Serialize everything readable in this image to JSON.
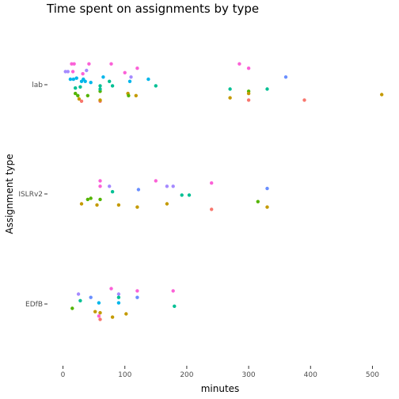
{
  "chart_data": {
    "type": "scatter",
    "title": "Time spent on assignments by type",
    "xlabel": "minutes",
    "ylabel": "Assignment type",
    "xlim": [
      -25,
      525
    ],
    "x_ticks": [
      0,
      100,
      200,
      300,
      400,
      500
    ],
    "categories": [
      "lab",
      "ISLRv2",
      "EDfB"
    ],
    "grid": false,
    "legend": "none",
    "point_colors": [
      "#F8766D",
      "#C49A00",
      "#53B400",
      "#00C094",
      "#00B6EB",
      "#A58AFF",
      "#FB61D7"
    ],
    "points": [
      {
        "category": "lab",
        "x": 4,
        "jitter": 0.12,
        "color": "#A58AFF"
      },
      {
        "category": "lab",
        "x": 8,
        "jitter": 0.12,
        "color": "#A58AFF"
      },
      {
        "category": "lab",
        "x": 12,
        "jitter": 0.05,
        "color": "#00B6EB"
      },
      {
        "category": "lab",
        "x": 14,
        "jitter": 0.19,
        "color": "#FB61D7"
      },
      {
        "category": "lab",
        "x": 16,
        "jitter": 0.12,
        "color": "#FB61D7"
      },
      {
        "category": "lab",
        "x": 17,
        "jitter": 0.05,
        "color": "#00B6EB"
      },
      {
        "category": "lab",
        "x": 18,
        "jitter": 0.19,
        "color": "#FB61D7"
      },
      {
        "category": "lab",
        "x": 20,
        "jitter": -0.03,
        "color": "#00C094"
      },
      {
        "category": "lab",
        "x": 22,
        "jitter": 0.06,
        "color": "#00B6EB"
      },
      {
        "category": "lab",
        "x": 20,
        "jitter": -0.08,
        "color": "#53B400"
      },
      {
        "category": "lab",
        "x": 24,
        "jitter": -0.1,
        "color": "#53B400"
      },
      {
        "category": "lab",
        "x": 26,
        "jitter": -0.13,
        "color": "#C49A00"
      },
      {
        "category": "lab",
        "x": 28,
        "jitter": -0.02,
        "color": "#00C094"
      },
      {
        "category": "lab",
        "x": 30,
        "jitter": -0.15,
        "color": "#F8766D"
      },
      {
        "category": "lab",
        "x": 30,
        "jitter": 0.03,
        "color": "#00B6EB"
      },
      {
        "category": "lab",
        "x": 32,
        "jitter": 0.1,
        "color": "#FB61D7"
      },
      {
        "category": "lab",
        "x": 33,
        "jitter": 0.05,
        "color": "#00B6EB"
      },
      {
        "category": "lab",
        "x": 36,
        "jitter": 0.03,
        "color": "#00B6EB"
      },
      {
        "category": "lab",
        "x": 38,
        "jitter": 0.13,
        "color": "#A58AFF"
      },
      {
        "category": "lab",
        "x": 40,
        "jitter": -0.1,
        "color": "#53B400"
      },
      {
        "category": "lab",
        "x": 42,
        "jitter": 0.19,
        "color": "#FB61D7"
      },
      {
        "category": "lab",
        "x": 45,
        "jitter": 0.02,
        "color": "#00B6EB"
      },
      {
        "category": "lab",
        "x": 60,
        "jitter": -0.15,
        "color": "#F8766D"
      },
      {
        "category": "lab",
        "x": 60,
        "jitter": -0.14,
        "color": "#C49A00"
      },
      {
        "category": "lab",
        "x": 60,
        "jitter": -0.06,
        "color": "#53B400"
      },
      {
        "category": "lab",
        "x": 60,
        "jitter": -0.04,
        "color": "#00C094"
      },
      {
        "category": "lab",
        "x": 60,
        "jitter": -0.01,
        "color": "#00C094"
      },
      {
        "category": "lab",
        "x": 65,
        "jitter": 0.07,
        "color": "#00B6EB"
      },
      {
        "category": "lab",
        "x": 75,
        "jitter": 0.03,
        "color": "#00C094"
      },
      {
        "category": "lab",
        "x": 78,
        "jitter": 0.19,
        "color": "#FB61D7"
      },
      {
        "category": "lab",
        "x": 80,
        "jitter": -0.01,
        "color": "#00C094"
      },
      {
        "category": "lab",
        "x": 100,
        "jitter": 0.11,
        "color": "#FB61D7"
      },
      {
        "category": "lab",
        "x": 105,
        "jitter": -0.08,
        "color": "#C49A00"
      },
      {
        "category": "lab",
        "x": 106,
        "jitter": -0.1,
        "color": "#53B400"
      },
      {
        "category": "lab",
        "x": 108,
        "jitter": 0.03,
        "color": "#00B6EB"
      },
      {
        "category": "lab",
        "x": 110,
        "jitter": 0.07,
        "color": "#A58AFF"
      },
      {
        "category": "lab",
        "x": 118,
        "jitter": -0.1,
        "color": "#C49A00"
      },
      {
        "category": "lab",
        "x": 120,
        "jitter": 0.15,
        "color": "#FB61D7"
      },
      {
        "category": "lab",
        "x": 138,
        "jitter": 0.05,
        "color": "#00B6EB"
      },
      {
        "category": "lab",
        "x": 150,
        "jitter": -0.01,
        "color": "#00C094"
      },
      {
        "category": "lab",
        "x": 270,
        "jitter": -0.04,
        "color": "#00C094"
      },
      {
        "category": "lab",
        "x": 270,
        "jitter": -0.12,
        "color": "#C49A00"
      },
      {
        "category": "lab",
        "x": 285,
        "jitter": 0.19,
        "color": "#FB61D7"
      },
      {
        "category": "lab",
        "x": 300,
        "jitter": 0.15,
        "color": "#FB61D7"
      },
      {
        "category": "lab",
        "x": 300,
        "jitter": -0.06,
        "color": "#53B400"
      },
      {
        "category": "lab",
        "x": 300,
        "jitter": -0.08,
        "color": "#C49A00"
      },
      {
        "category": "lab",
        "x": 300,
        "jitter": -0.14,
        "color": "#F8766D"
      },
      {
        "category": "lab",
        "x": 330,
        "jitter": -0.04,
        "color": "#00C094"
      },
      {
        "category": "lab",
        "x": 360,
        "jitter": 0.07,
        "color": "#6A8FFF"
      },
      {
        "category": "lab",
        "x": 390,
        "jitter": -0.14,
        "color": "#F8766D"
      },
      {
        "category": "lab",
        "x": 515,
        "jitter": -0.09,
        "color": "#C49A00"
      },
      {
        "category": "ISLRv2",
        "x": 30,
        "jitter": -0.09,
        "color": "#C49A00"
      },
      {
        "category": "ISLRv2",
        "x": 40,
        "jitter": -0.05,
        "color": "#53B400"
      },
      {
        "category": "ISLRv2",
        "x": 45,
        "jitter": -0.04,
        "color": "#53B400"
      },
      {
        "category": "ISLRv2",
        "x": 55,
        "jitter": -0.1,
        "color": "#C49A00"
      },
      {
        "category": "ISLRv2",
        "x": 60,
        "jitter": 0.12,
        "color": "#FB61D7"
      },
      {
        "category": "ISLRv2",
        "x": 60,
        "jitter": 0.07,
        "color": "#FB61D7"
      },
      {
        "category": "ISLRv2",
        "x": 60,
        "jitter": -0.05,
        "color": "#53B400"
      },
      {
        "category": "ISLRv2",
        "x": 75,
        "jitter": 0.07,
        "color": "#A58AFF"
      },
      {
        "category": "ISLRv2",
        "x": 80,
        "jitter": 0.02,
        "color": "#00C094"
      },
      {
        "category": "ISLRv2",
        "x": 90,
        "jitter": -0.1,
        "color": "#C49A00"
      },
      {
        "category": "ISLRv2",
        "x": 120,
        "jitter": -0.12,
        "color": "#C49A00"
      },
      {
        "category": "ISLRv2",
        "x": 122,
        "jitter": 0.04,
        "color": "#6A8FFF"
      },
      {
        "category": "ISLRv2",
        "x": 150,
        "jitter": 0.12,
        "color": "#FB61D7"
      },
      {
        "category": "ISLRv2",
        "x": 168,
        "jitter": 0.07,
        "color": "#A58AFF"
      },
      {
        "category": "ISLRv2",
        "x": 168,
        "jitter": -0.09,
        "color": "#C49A00"
      },
      {
        "category": "ISLRv2",
        "x": 178,
        "jitter": 0.07,
        "color": "#A58AFF"
      },
      {
        "category": "ISLRv2",
        "x": 192,
        "jitter": -0.01,
        "color": "#00C094"
      },
      {
        "category": "ISLRv2",
        "x": 204,
        "jitter": -0.01,
        "color": "#00C094"
      },
      {
        "category": "ISLRv2",
        "x": 240,
        "jitter": 0.1,
        "color": "#FB61D7"
      },
      {
        "category": "ISLRv2",
        "x": 240,
        "jitter": -0.14,
        "color": "#F8766D"
      },
      {
        "category": "ISLRv2",
        "x": 315,
        "jitter": -0.07,
        "color": "#53B400"
      },
      {
        "category": "ISLRv2",
        "x": 330,
        "jitter": 0.05,
        "color": "#6A8FFF"
      },
      {
        "category": "ISLRv2",
        "x": 330,
        "jitter": -0.12,
        "color": "#C49A00"
      },
      {
        "category": "EDfB",
        "x": 15,
        "jitter": -0.04,
        "color": "#53B400"
      },
      {
        "category": "EDfB",
        "x": 25,
        "jitter": 0.09,
        "color": "#A58AFF"
      },
      {
        "category": "EDfB",
        "x": 28,
        "jitter": 0.03,
        "color": "#00C094"
      },
      {
        "category": "EDfB",
        "x": 45,
        "jitter": 0.06,
        "color": "#6A8FFF"
      },
      {
        "category": "EDfB",
        "x": 52,
        "jitter": -0.07,
        "color": "#C49A00"
      },
      {
        "category": "EDfB",
        "x": 58,
        "jitter": 0.01,
        "color": "#00B6EB"
      },
      {
        "category": "EDfB",
        "x": 58,
        "jitter": -0.11,
        "color": "#FB61D7"
      },
      {
        "category": "EDfB",
        "x": 60,
        "jitter": -0.08,
        "color": "#C49A00"
      },
      {
        "category": "EDfB",
        "x": 60,
        "jitter": -0.14,
        "color": "#F8766D"
      },
      {
        "category": "EDfB",
        "x": 78,
        "jitter": 0.14,
        "color": "#FB61D7"
      },
      {
        "category": "EDfB",
        "x": 80,
        "jitter": -0.12,
        "color": "#C49A00"
      },
      {
        "category": "EDfB",
        "x": 90,
        "jitter": 0.09,
        "color": "#A58AFF"
      },
      {
        "category": "EDfB",
        "x": 90,
        "jitter": 0.06,
        "color": "#00C094"
      },
      {
        "category": "EDfB",
        "x": 90,
        "jitter": 0.01,
        "color": "#00B6EB"
      },
      {
        "category": "EDfB",
        "x": 102,
        "jitter": -0.09,
        "color": "#C49A00"
      },
      {
        "category": "EDfB",
        "x": 120,
        "jitter": 0.12,
        "color": "#FB61D7"
      },
      {
        "category": "EDfB",
        "x": 120,
        "jitter": 0.06,
        "color": "#6A8FFF"
      },
      {
        "category": "EDfB",
        "x": 178,
        "jitter": 0.12,
        "color": "#FB61D7"
      },
      {
        "category": "EDfB",
        "x": 180,
        "jitter": -0.02,
        "color": "#00C094"
      }
    ]
  }
}
